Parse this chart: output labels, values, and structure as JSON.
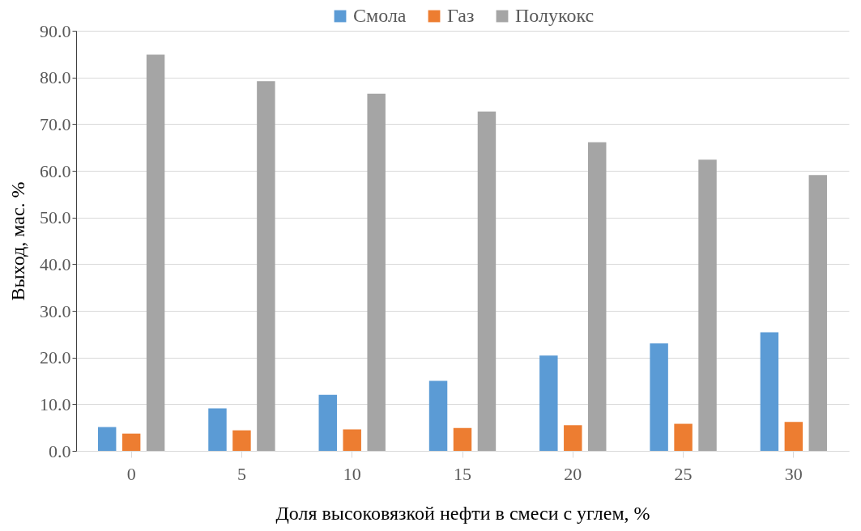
{
  "chart_data": {
    "type": "bar",
    "xlabel": "Доля высоковязкой нефти в смеси с углем, %",
    "ylabel": "Выход, мас. %",
    "categories": [
      "0",
      "5",
      "10",
      "15",
      "20",
      "25",
      "30"
    ],
    "series": [
      {
        "name": "Смола",
        "color": "#5b9bd5",
        "values": [
          5.1,
          9.1,
          12.0,
          15.0,
          20.4,
          23.0,
          25.4
        ]
      },
      {
        "name": "Газ",
        "color": "#ed7d31",
        "values": [
          3.7,
          4.4,
          4.6,
          4.9,
          5.5,
          5.8,
          6.2
        ]
      },
      {
        "name": "Полукокс",
        "color": "#a5a5a5",
        "values": [
          84.9,
          79.2,
          76.5,
          72.7,
          66.1,
          62.4,
          59.1
        ]
      }
    ],
    "ylim": [
      0,
      90
    ],
    "yticks": [
      {
        "value": 0,
        "label": "0.0"
      },
      {
        "value": 10,
        "label": "10.0"
      },
      {
        "value": 20,
        "label": "20.0"
      },
      {
        "value": 30,
        "label": "30.0"
      },
      {
        "value": 40,
        "label": "40.0"
      },
      {
        "value": 50,
        "label": "50.0"
      },
      {
        "value": 60,
        "label": "60.0"
      },
      {
        "value": 70,
        "label": "70.0"
      },
      {
        "value": 80,
        "label": "80.0"
      },
      {
        "value": 90,
        "label": "90.0"
      }
    ],
    "grid": "y",
    "legend": "top"
  }
}
